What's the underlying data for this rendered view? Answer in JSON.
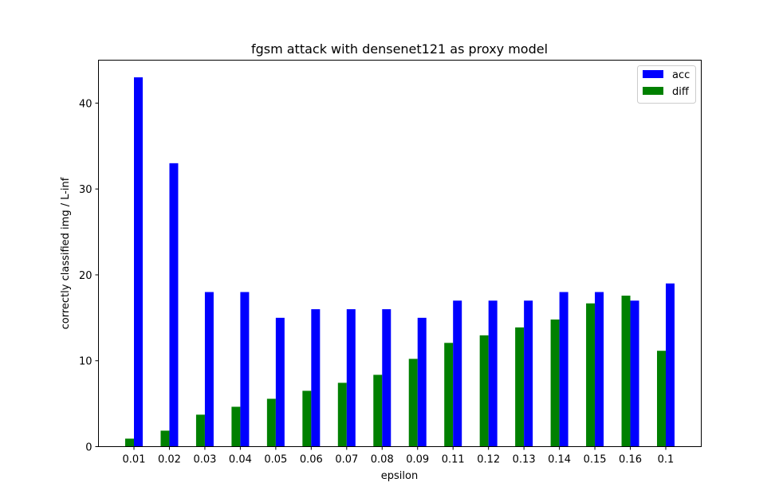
{
  "chart_data": {
    "type": "bar",
    "title": "fgsm attack with densenet121 as proxy model",
    "xlabel": "epsilon",
    "ylabel": "correctly classified img / L-inf",
    "categories": [
      "0.01",
      "0.02",
      "0.03",
      "0.04",
      "0.05",
      "0.06",
      "0.07",
      "0.08",
      "0.09",
      "0.11",
      "0.12",
      "0.13",
      "0.14",
      "0.15",
      "0.16",
      "0.1"
    ],
    "series": [
      {
        "name": "acc",
        "color": "#0000ff",
        "values": [
          43,
          33,
          18,
          18,
          15,
          16,
          16,
          16,
          15,
          17,
          17,
          17,
          18,
          18,
          17,
          19
        ]
      },
      {
        "name": "diff",
        "color": "#008000",
        "values": [
          0.93,
          1.86,
          3.72,
          4.64,
          5.57,
          6.5,
          7.43,
          8.36,
          10.22,
          12.08,
          12.96,
          13.88,
          14.8,
          16.68,
          17.58,
          11.16
        ]
      }
    ],
    "ylim": [
      0,
      45
    ],
    "yticks": [
      0,
      10,
      20,
      30,
      40
    ],
    "legend": "top-right",
    "grid": false
  }
}
